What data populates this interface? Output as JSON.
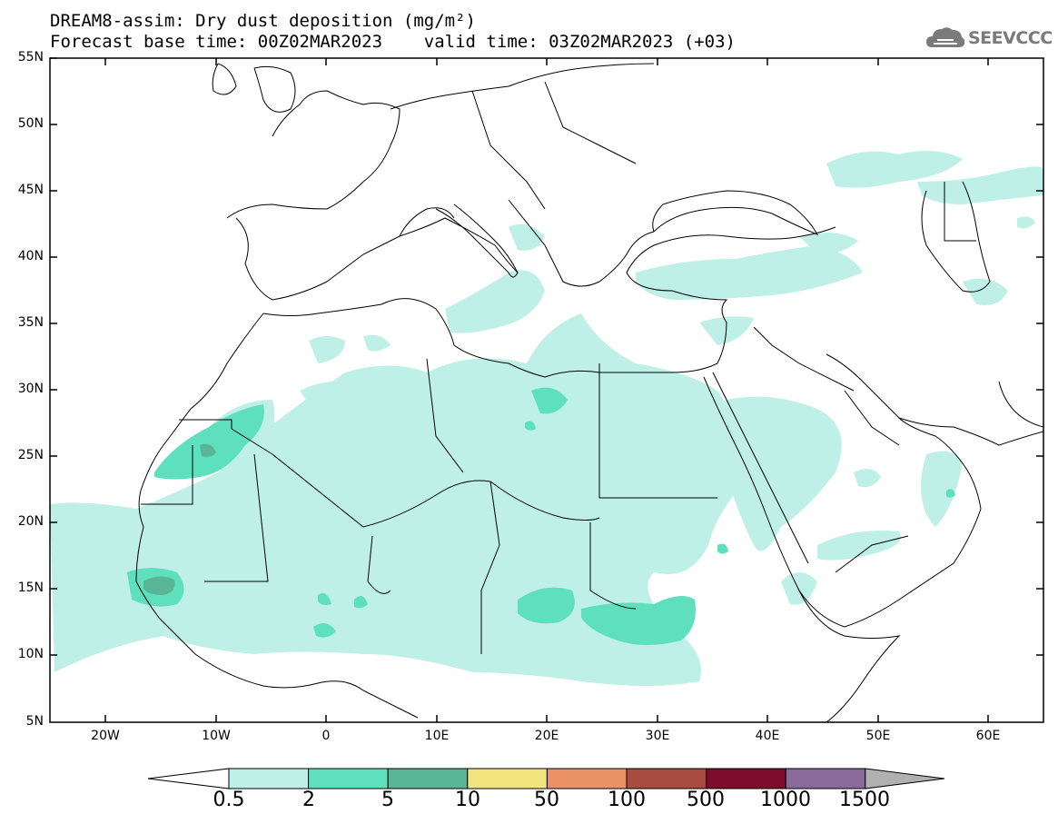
{
  "title": {
    "line1": "DREAM8-assim: Dry dust deposition (mg/m²)",
    "line2": "Forecast base time: 00Z02MAR2023    valid time: 03Z02MAR2023 (+03)"
  },
  "logo": {
    "text": "SEEVCCC",
    "icon": "cloud-icon"
  },
  "map": {
    "region": "North Africa, Europe and Middle East",
    "lat_range": [
      5,
      55
    ],
    "lon_range": [
      -25,
      65
    ],
    "lat_labels": [
      "55N",
      "50N",
      "45N",
      "40N",
      "35N",
      "30N",
      "25N",
      "20N",
      "15N",
      "10N",
      "5N"
    ],
    "lon_labels": [
      "20W",
      "10W",
      "0",
      "10E",
      "20E",
      "30E",
      "40E",
      "50E",
      "60E"
    ]
  },
  "colorbar": {
    "labels": [
      "0.5",
      "2",
      "5",
      "10",
      "50",
      "100",
      "500",
      "1000",
      "1500"
    ],
    "colors": [
      "#bff0e8",
      "#5ee0bf",
      "#58b596",
      "#f3e57e",
      "#ea9266",
      "#a94b40",
      "#7d0d2a",
      "#8a6a9a",
      "#b0b0b0"
    ],
    "under_color": "#ffffff",
    "over_color": "#b0b0b0"
  },
  "levels_shown": [
    "0.5",
    "2",
    "5"
  ],
  "colors": {
    "level_0_5": "#bff0e8",
    "level_2": "#5ee0bf",
    "level_5": "#58b596"
  }
}
